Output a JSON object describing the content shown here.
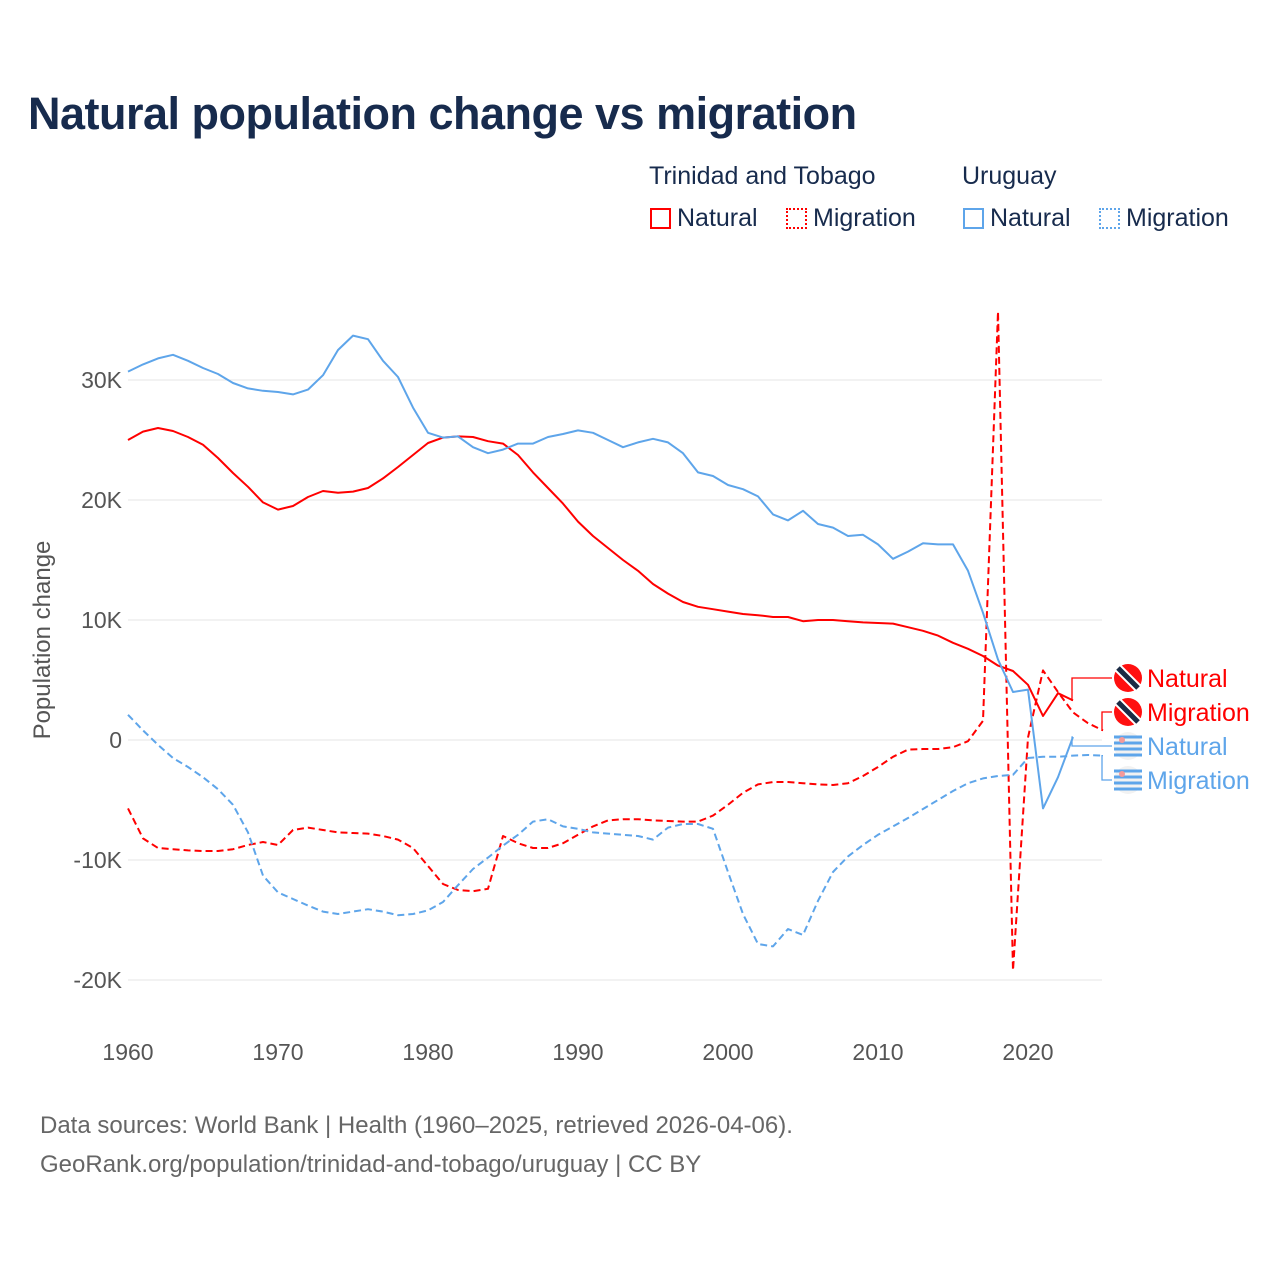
{
  "title": "Natural population change vs migration",
  "legend": {
    "groups": [
      {
        "label": "Trinidad and Tobago",
        "items": [
          "Natural",
          "Migration"
        ],
        "color": "#ff0000"
      },
      {
        "label": "Uruguay",
        "items": [
          "Natural",
          "Migration"
        ],
        "color": "#5ea5ea"
      }
    ]
  },
  "footer": {
    "line1": "Data sources: World Bank | Health (1960–2025, retrieved 2026-04-06).",
    "line2": "GeoRank.org/population/trinidad-and-tobago/uruguay | CC BY"
  },
  "chart_data": {
    "type": "line",
    "title": "Natural population change vs migration",
    "xlabel": "",
    "ylabel": "Population change",
    "xlim": [
      1960,
      2025
    ],
    "ylim": [
      -20000,
      35000
    ],
    "x_ticks": [
      1960,
      1970,
      1980,
      1990,
      2000,
      2010,
      2020
    ],
    "y_ticks": [
      {
        "v": 30000,
        "label": "30K"
      },
      {
        "v": 20000,
        "label": "20K"
      },
      {
        "v": 10000,
        "label": "10K"
      },
      {
        "v": 0,
        "label": "0"
      },
      {
        "v": -10000,
        "label": "-10K"
      },
      {
        "v": -20000,
        "label": "-20K"
      }
    ],
    "grid": true,
    "start_year": 1960,
    "series": [
      {
        "name": "Natural",
        "country": "Trinidad and Tobago",
        "color": "#ff0000",
        "dash": false,
        "flag": "trinidad-and-tobago-flag",
        "values": [
          25.0,
          25.7,
          26.0,
          25.75,
          25.25,
          24.6,
          23.5,
          22.25,
          21.1,
          19.8,
          19.2,
          19.5,
          20.25,
          20.75,
          20.6,
          20.7,
          21.0,
          21.8,
          22.75,
          23.75,
          24.75,
          25.2,
          25.3,
          25.25,
          24.9,
          24.7,
          23.75,
          22.3,
          21.0,
          19.7,
          18.2,
          17.0,
          16.0,
          15.0,
          14.1,
          13.0,
          12.2,
          11.5,
          11.1,
          10.9,
          10.7,
          10.5,
          10.4,
          10.25,
          10.25,
          9.9,
          10.0,
          10.0,
          9.9,
          9.8,
          9.75,
          9.7,
          9.4,
          9.1,
          8.7,
          8.1,
          7.6,
          7.0,
          6.2,
          5.75,
          4.6,
          2.0,
          3.9,
          3.3
        ]
      },
      {
        "name": "Migration",
        "country": "Trinidad and Tobago",
        "color": "#ff0000",
        "dash": true,
        "flag": "trinidad-and-tobago-flag",
        "values": [
          -5.7,
          -8.2,
          -9.0,
          -9.1,
          -9.2,
          -9.25,
          -9.25,
          -9.1,
          -8.75,
          -8.5,
          -8.75,
          -7.5,
          -7.3,
          -7.5,
          -7.7,
          -7.75,
          -7.8,
          -8.0,
          -8.3,
          -9.0,
          -10.5,
          -12.0,
          -12.5,
          -12.6,
          -12.4,
          -8.0,
          -8.6,
          -9.0,
          -9.0,
          -8.6,
          -7.9,
          -7.2,
          -6.7,
          -6.6,
          -6.6,
          -6.7,
          -6.75,
          -6.8,
          -6.8,
          -6.3,
          -5.4,
          -4.4,
          -3.7,
          -3.5,
          -3.5,
          -3.6,
          -3.7,
          -3.75,
          -3.6,
          -3.0,
          -2.25,
          -1.4,
          -0.8,
          -0.75,
          -0.75,
          -0.6,
          -0.1,
          1.6,
          35.7,
          -19.2,
          0.2,
          5.8,
          4.0,
          2.3,
          1.4,
          0.8
        ]
      },
      {
        "name": "Natural",
        "country": "Uruguay",
        "color": "#5ea5ea",
        "dash": false,
        "flag": "uruguay-flag",
        "values": [
          30.7,
          31.3,
          31.8,
          32.1,
          31.6,
          31.0,
          30.5,
          29.75,
          29.3,
          29.1,
          29.0,
          28.8,
          29.2,
          30.4,
          32.5,
          33.7,
          33.4,
          31.6,
          30.25,
          27.7,
          25.6,
          25.2,
          25.3,
          24.4,
          23.9,
          24.2,
          24.7,
          24.7,
          25.25,
          25.5,
          25.8,
          25.6,
          25.0,
          24.4,
          24.8,
          25.1,
          24.8,
          23.9,
          22.3,
          22.0,
          21.25,
          20.9,
          20.3,
          18.8,
          18.3,
          19.1,
          18.0,
          17.7,
          17.0,
          17.1,
          16.3,
          15.1,
          15.7,
          16.4,
          16.3,
          16.3,
          14.1,
          10.6,
          6.7,
          4.0,
          4.2,
          -5.7,
          -3.1,
          0.25
        ]
      },
      {
        "name": "Migration",
        "country": "Uruguay",
        "color": "#5ea5ea",
        "dash": true,
        "flag": "uruguay-flag",
        "values": [
          2.1,
          0.8,
          -0.4,
          -1.5,
          -2.25,
          -3.1,
          -4.1,
          -5.4,
          -7.7,
          -11.3,
          -12.7,
          -13.25,
          -13.8,
          -14.3,
          -14.5,
          -14.3,
          -14.1,
          -14.3,
          -14.6,
          -14.5,
          -14.2,
          -13.5,
          -12.1,
          -10.75,
          -9.8,
          -8.8,
          -7.9,
          -6.8,
          -6.6,
          -7.2,
          -7.4,
          -7.7,
          -7.8,
          -7.9,
          -8.0,
          -8.3,
          -7.3,
          -7.0,
          -7.0,
          -7.4,
          -11.0,
          -14.5,
          -17.0,
          -17.2,
          -15.75,
          -16.25,
          -13.4,
          -11.0,
          -9.7,
          -8.75,
          -7.9,
          -7.2,
          -6.5,
          -5.75,
          -5.0,
          -4.25,
          -3.6,
          -3.2,
          -3.0,
          -2.9,
          -1.5,
          -1.4,
          -1.4,
          -1.3,
          -1.25,
          -1.3
        ]
      }
    ],
    "value_unit": "thousands"
  }
}
